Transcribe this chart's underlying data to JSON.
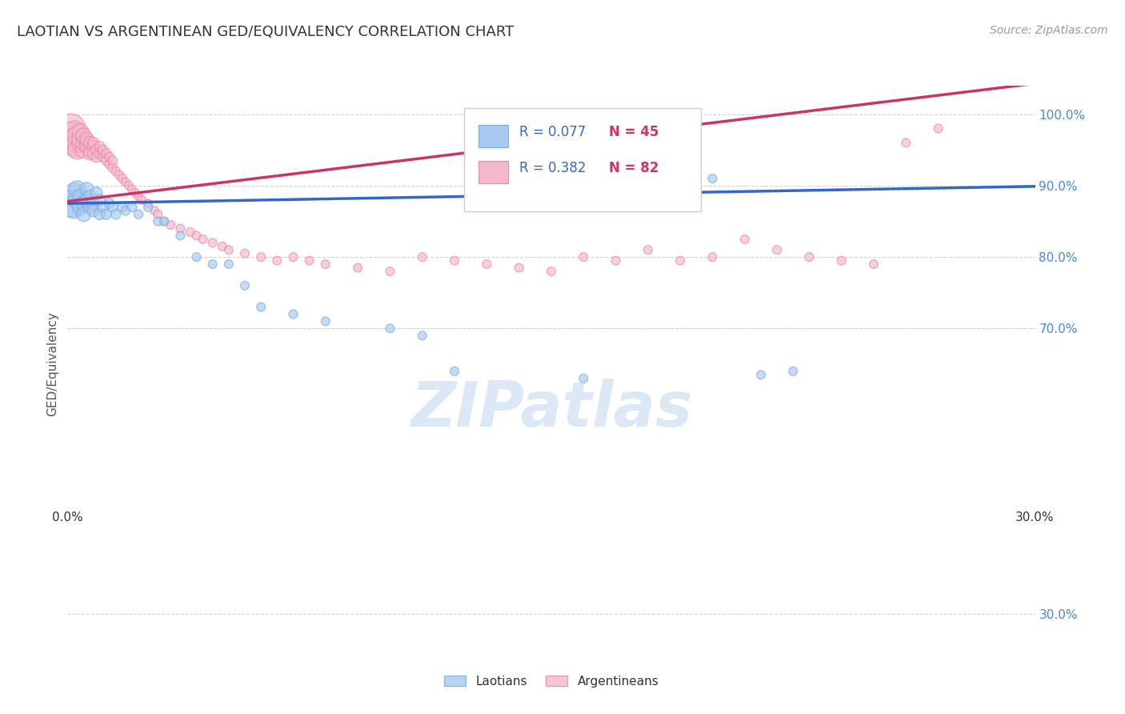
{
  "title": "LAOTIAN VS ARGENTINEAN GED/EQUIVALENCY CORRELATION CHART",
  "source": "Source: ZipAtlas.com",
  "ylabel": "GED/Equivalency",
  "ytick_labels": [
    "100.0%",
    "90.0%",
    "80.0%",
    "70.0%",
    "30.0%"
  ],
  "ytick_values": [
    1.0,
    0.9,
    0.8,
    0.7,
    0.3
  ],
  "xlim": [
    0.0,
    0.3
  ],
  "ylim": [
    0.26,
    1.04
  ],
  "r_laotian": 0.077,
  "n_laotian": 45,
  "r_argentinean": 0.382,
  "n_argentinean": 82,
  "laotian_color": "#a8c8f0",
  "laotian_edge_color": "#7aaee0",
  "argentinean_color": "#f5b8cb",
  "argentinean_edge_color": "#e888a8",
  "laotian_line_color": "#3366cc",
  "argentinean_line_color": "#cc3366",
  "legend_r_color": "#3366cc",
  "legend_n_color": "#cc3366",
  "watermark_color": "#dce8f5",
  "background_color": "#ffffff",
  "grid_color": "#cccccc",
  "laotian_x": [
    0.001,
    0.002,
    0.002,
    0.003,
    0.003,
    0.004,
    0.004,
    0.005,
    0.005,
    0.006,
    0.006,
    0.007,
    0.007,
    0.008,
    0.008,
    0.009,
    0.01,
    0.01,
    0.011,
    0.012,
    0.013,
    0.014,
    0.015,
    0.017,
    0.018,
    0.02,
    0.022,
    0.025,
    0.028,
    0.03,
    0.035,
    0.04,
    0.045,
    0.05,
    0.055,
    0.06,
    0.07,
    0.08,
    0.1,
    0.11,
    0.12,
    0.16,
    0.2,
    0.215,
    0.225
  ],
  "laotian_y": [
    0.875,
    0.87,
    0.89,
    0.88,
    0.895,
    0.87,
    0.885,
    0.875,
    0.86,
    0.88,
    0.895,
    0.87,
    0.885,
    0.875,
    0.865,
    0.89,
    0.88,
    0.86,
    0.87,
    0.86,
    0.875,
    0.87,
    0.86,
    0.87,
    0.865,
    0.87,
    0.86,
    0.87,
    0.85,
    0.85,
    0.83,
    0.8,
    0.79,
    0.79,
    0.76,
    0.73,
    0.72,
    0.71,
    0.7,
    0.69,
    0.64,
    0.63,
    0.91,
    0.635,
    0.64
  ],
  "laotian_size": [
    120,
    80,
    60,
    50,
    45,
    40,
    38,
    36,
    34,
    32,
    30,
    28,
    26,
    25,
    24,
    22,
    20,
    20,
    18,
    17,
    16,
    16,
    15,
    15,
    14,
    14,
    13,
    13,
    12,
    12,
    12,
    12,
    12,
    12,
    12,
    12,
    12,
    12,
    12,
    12,
    12,
    12,
    12,
    12,
    12
  ],
  "argentinean_x": [
    0.001,
    0.001,
    0.001,
    0.002,
    0.002,
    0.002,
    0.003,
    0.003,
    0.003,
    0.004,
    0.004,
    0.004,
    0.005,
    0.005,
    0.005,
    0.006,
    0.006,
    0.006,
    0.007,
    0.007,
    0.007,
    0.008,
    0.008,
    0.008,
    0.009,
    0.009,
    0.01,
    0.01,
    0.011,
    0.011,
    0.012,
    0.012,
    0.013,
    0.013,
    0.014,
    0.014,
    0.015,
    0.016,
    0.017,
    0.018,
    0.019,
    0.02,
    0.021,
    0.022,
    0.023,
    0.025,
    0.027,
    0.028,
    0.03,
    0.032,
    0.035,
    0.038,
    0.04,
    0.042,
    0.045,
    0.048,
    0.05,
    0.055,
    0.06,
    0.065,
    0.07,
    0.075,
    0.08,
    0.09,
    0.1,
    0.11,
    0.12,
    0.13,
    0.14,
    0.15,
    0.16,
    0.17,
    0.18,
    0.19,
    0.2,
    0.21,
    0.22,
    0.23,
    0.24,
    0.25,
    0.26,
    0.27
  ],
  "argentinean_y": [
    0.98,
    0.97,
    0.96,
    0.975,
    0.965,
    0.955,
    0.96,
    0.97,
    0.95,
    0.96,
    0.965,
    0.975,
    0.95,
    0.96,
    0.97,
    0.96,
    0.955,
    0.965,
    0.95,
    0.945,
    0.96,
    0.955,
    0.945,
    0.96,
    0.95,
    0.94,
    0.945,
    0.955,
    0.94,
    0.95,
    0.935,
    0.945,
    0.93,
    0.94,
    0.925,
    0.935,
    0.92,
    0.915,
    0.91,
    0.905,
    0.9,
    0.895,
    0.89,
    0.885,
    0.88,
    0.875,
    0.865,
    0.86,
    0.85,
    0.845,
    0.84,
    0.835,
    0.83,
    0.825,
    0.82,
    0.815,
    0.81,
    0.805,
    0.8,
    0.795,
    0.8,
    0.795,
    0.79,
    0.785,
    0.78,
    0.8,
    0.795,
    0.79,
    0.785,
    0.78,
    0.8,
    0.795,
    0.81,
    0.795,
    0.8,
    0.825,
    0.81,
    0.8,
    0.795,
    0.79,
    0.96,
    0.98
  ],
  "argentinean_size": [
    140,
    110,
    90,
    80,
    75,
    70,
    65,
    60,
    55,
    52,
    48,
    45,
    42,
    40,
    38,
    36,
    34,
    32,
    30,
    28,
    26,
    24,
    22,
    20,
    20,
    18,
    18,
    17,
    16,
    16,
    15,
    15,
    14,
    14,
    14,
    14,
    13,
    13,
    13,
    12,
    12,
    12,
    12,
    12,
    12,
    12,
    12,
    12,
    12,
    12,
    12,
    12,
    12,
    12,
    12,
    12,
    12,
    12,
    12,
    12,
    12,
    12,
    12,
    12,
    12,
    12,
    12,
    12,
    12,
    12,
    12,
    12,
    12,
    12,
    12,
    12,
    12,
    12,
    12,
    12,
    12,
    12
  ]
}
